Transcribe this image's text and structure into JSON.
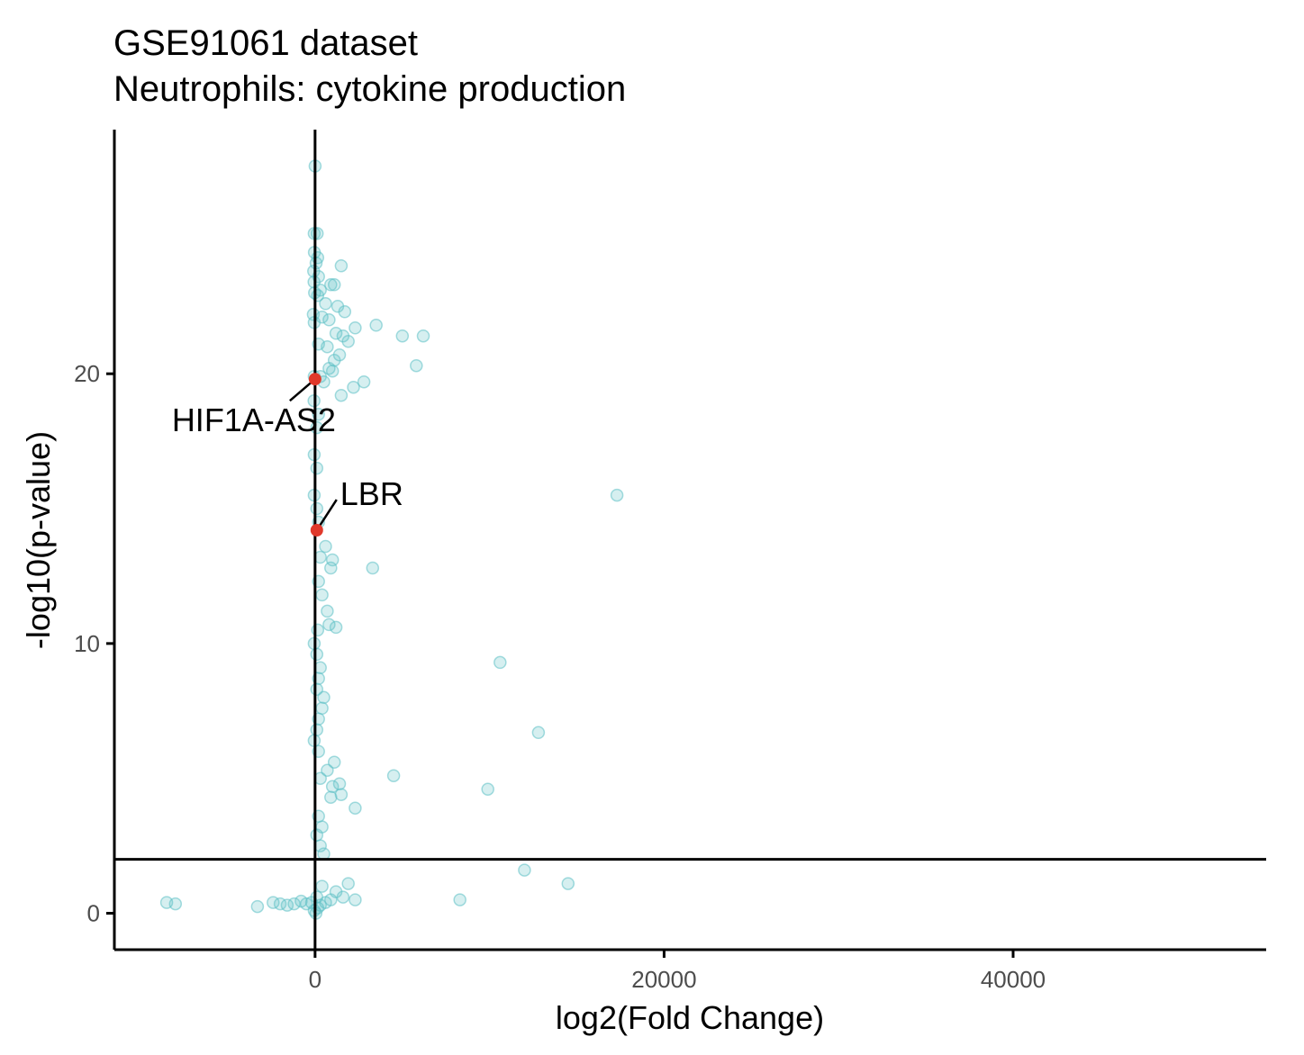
{
  "chart_data": {
    "type": "scatter",
    "title": "GSE91061 dataset",
    "subtitle": "Neutrophils: cytokine production",
    "xlabel": "log2(Fold Change)",
    "ylabel": "-log10(p-value)",
    "xlim": [
      -11500,
      54500
    ],
    "ylim": [
      -1.35,
      29.05
    ],
    "x_ticks": [
      0,
      20000,
      40000
    ],
    "x_tick_labels": [
      "0",
      "20000",
      "40000"
    ],
    "y_ticks": [
      0,
      10,
      20
    ],
    "y_tick_labels": [
      "0",
      "10",
      "20"
    ],
    "grid": false,
    "reference_lines": {
      "vline_x": 0,
      "hline_y": 2
    },
    "colors": {
      "points": "#5bc0c4",
      "highlight": "#e0392b",
      "axis": "#000000"
    },
    "series": [
      {
        "role": "all-genes",
        "points": [
          [
            0,
            27.7
          ],
          [
            -50,
            25.2
          ],
          [
            120,
            25.2
          ],
          [
            -40,
            24.5
          ],
          [
            150,
            24.3
          ],
          [
            60,
            24.1
          ],
          [
            1500,
            24.0
          ],
          [
            -80,
            23.8
          ],
          [
            200,
            23.6
          ],
          [
            -60,
            23.4
          ],
          [
            900,
            23.3
          ],
          [
            1100,
            23.3
          ],
          [
            300,
            23.1
          ],
          [
            -30,
            23.0
          ],
          [
            150,
            22.9
          ],
          [
            600,
            22.6
          ],
          [
            1300,
            22.5
          ],
          [
            1700,
            22.3
          ],
          [
            -100,
            22.2
          ],
          [
            400,
            22.1
          ],
          [
            800,
            22.0
          ],
          [
            2300,
            21.7
          ],
          [
            3500,
            21.8
          ],
          [
            -50,
            21.9
          ],
          [
            1200,
            21.5
          ],
          [
            1600,
            21.4
          ],
          [
            1900,
            21.2
          ],
          [
            5000,
            21.4
          ],
          [
            6200,
            21.4
          ],
          [
            200,
            21.1
          ],
          [
            700,
            21.0
          ],
          [
            1400,
            20.7
          ],
          [
            1100,
            20.5
          ],
          [
            5800,
            20.3
          ],
          [
            800,
            20.2
          ],
          [
            1000,
            20.1
          ],
          [
            -50,
            19.9
          ],
          [
            300,
            19.9
          ],
          [
            500,
            19.7
          ],
          [
            2800,
            19.7
          ],
          [
            2200,
            19.5
          ],
          [
            1500,
            19.2
          ],
          [
            -60,
            19.0
          ],
          [
            200,
            18.5
          ],
          [
            100,
            18.0
          ],
          [
            -50,
            17.0
          ],
          [
            100,
            16.5
          ],
          [
            17300,
            15.5
          ],
          [
            -50,
            15.5
          ],
          [
            100,
            15.0
          ],
          [
            200,
            14.5
          ],
          [
            600,
            13.6
          ],
          [
            300,
            13.2
          ],
          [
            1000,
            13.1
          ],
          [
            900,
            12.8
          ],
          [
            3300,
            12.8
          ],
          [
            200,
            12.3
          ],
          [
            400,
            11.8
          ],
          [
            700,
            11.2
          ],
          [
            800,
            10.7
          ],
          [
            1200,
            10.6
          ],
          [
            150,
            10.5
          ],
          [
            -50,
            10.0
          ],
          [
            100,
            9.6
          ],
          [
            10600,
            9.3
          ],
          [
            300,
            9.1
          ],
          [
            200,
            8.7
          ],
          [
            100,
            8.3
          ],
          [
            500,
            8.0
          ],
          [
            400,
            7.6
          ],
          [
            200,
            7.2
          ],
          [
            100,
            6.8
          ],
          [
            12800,
            6.7
          ],
          [
            -50,
            6.4
          ],
          [
            200,
            6.0
          ],
          [
            1100,
            5.6
          ],
          [
            700,
            5.3
          ],
          [
            4500,
            5.1
          ],
          [
            300,
            5.0
          ],
          [
            1400,
            4.8
          ],
          [
            1000,
            4.7
          ],
          [
            9900,
            4.6
          ],
          [
            1500,
            4.4
          ],
          [
            900,
            4.3
          ],
          [
            2300,
            3.9
          ],
          [
            200,
            3.6
          ],
          [
            400,
            3.2
          ],
          [
            100,
            2.9
          ],
          [
            300,
            2.5
          ],
          [
            500,
            2.2
          ],
          [
            12000,
            1.6
          ],
          [
            14500,
            1.1
          ],
          [
            1900,
            1.1
          ],
          [
            400,
            1.0
          ],
          [
            1200,
            0.8
          ],
          [
            1600,
            0.6
          ],
          [
            2300,
            0.5
          ],
          [
            8300,
            0.5
          ],
          [
            -200,
            0.4
          ],
          [
            -500,
            0.35
          ],
          [
            -800,
            0.45
          ],
          [
            -1200,
            0.35
          ],
          [
            -1600,
            0.3
          ],
          [
            -2000,
            0.35
          ],
          [
            -2400,
            0.4
          ],
          [
            -3300,
            0.25
          ],
          [
            -8500,
            0.4
          ],
          [
            -8000,
            0.35
          ],
          [
            100,
            0.6
          ],
          [
            300,
            0.3
          ],
          [
            600,
            0.4
          ],
          [
            900,
            0.5
          ],
          [
            -50,
            0.1
          ],
          [
            50,
            0.0
          ],
          [
            150,
            0.2
          ]
        ]
      },
      {
        "role": "highlighted",
        "points": [
          {
            "label": "HIF1A-AS2",
            "x": 0,
            "y": 19.8
          },
          {
            "label": "LBR",
            "x": 100,
            "y": 14.2
          }
        ]
      }
    ]
  }
}
